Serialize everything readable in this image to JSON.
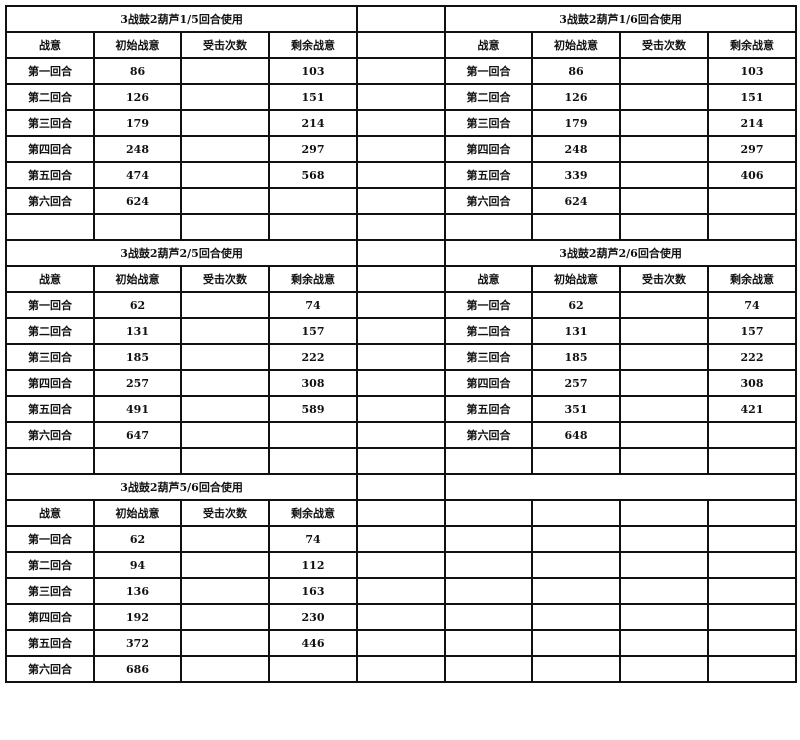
{
  "headers": [
    "战意",
    "初始战意",
    "受击次数",
    "剩余战意"
  ],
  "round_labels": [
    "第一回合",
    "第二回合",
    "第三回合",
    "第四回合",
    "第五回合",
    "第六回合"
  ],
  "sections": [
    {
      "left": {
        "title": "3战鼓2葫芦1/5回合使用",
        "initial": [
          "86",
          "126",
          "179",
          "248",
          "474",
          "624"
        ],
        "hits": [
          "",
          "",
          "",
          "",
          "",
          ""
        ],
        "remaining": [
          "103",
          "151",
          "214",
          "297",
          "568",
          ""
        ]
      },
      "right": {
        "title": "3战鼓2葫芦1/6回合使用",
        "initial": [
          "86",
          "126",
          "179",
          "248",
          "339",
          "624"
        ],
        "hits": [
          "",
          "",
          "",
          "",
          "",
          ""
        ],
        "remaining": [
          "103",
          "151",
          "214",
          "297",
          "406",
          ""
        ]
      },
      "blank_row": true
    },
    {
      "left": {
        "title": "3战鼓2葫芦2/5回合使用",
        "initial": [
          "62",
          "131",
          "185",
          "257",
          "491",
          "647"
        ],
        "hits": [
          "",
          "",
          "",
          "",
          "",
          ""
        ],
        "remaining": [
          "74",
          "157",
          "222",
          "308",
          "589",
          ""
        ]
      },
      "right": {
        "title": "3战鼓2葫芦2/6回合使用",
        "initial": [
          "62",
          "131",
          "185",
          "257",
          "351",
          "648"
        ],
        "hits": [
          "",
          "",
          "",
          "",
          "",
          ""
        ],
        "remaining": [
          "74",
          "157",
          "222",
          "308",
          "421",
          ""
        ]
      },
      "blank_row": true
    },
    {
      "left": {
        "title": "3战鼓2葫芦5/6回合使用",
        "initial": [
          "62",
          "94",
          "136",
          "192",
          "372",
          "686"
        ],
        "hits": [
          "",
          "",
          "",
          "",
          "",
          ""
        ],
        "remaining": [
          "74",
          "112",
          "163",
          "230",
          "446",
          ""
        ]
      },
      "right": null,
      "blank_row": false
    }
  ]
}
